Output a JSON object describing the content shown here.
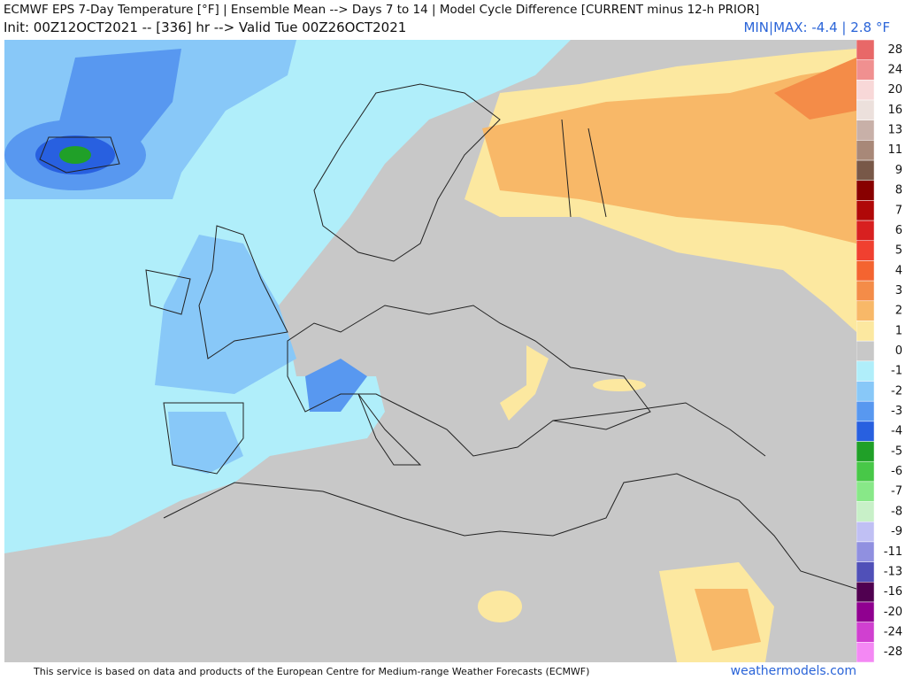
{
  "header": {
    "title": "ECMWF EPS 7-Day Temperature [°F] | Ensemble Mean --> Days 7 to 14 | Model Cycle Difference [CURRENT minus 12-h PRIOR]",
    "subtitle": "Init: 00Z12OCT2021 -- [336] hr --> Valid Tue 00Z26OCT2021",
    "minmax": "MIN|MAX: -4.4 | 2.8 °F"
  },
  "colorbar": [
    {
      "label": 28,
      "color": "#e86868"
    },
    {
      "label": 24,
      "color": "#f09090"
    },
    {
      "label": 20,
      "color": "#f8d8d8"
    },
    {
      "label": 16,
      "color": "#ece0dc"
    },
    {
      "label": 13,
      "color": "#c8b0a8"
    },
    {
      "label": 11,
      "color": "#a88878"
    },
    {
      "label": 9,
      "color": "#785848"
    },
    {
      "label": 8,
      "color": "#880000"
    },
    {
      "label": 7,
      "color": "#b00808"
    },
    {
      "label": 6,
      "color": "#d82020"
    },
    {
      "label": 5,
      "color": "#f04030"
    },
    {
      "label": 4,
      "color": "#f46430"
    },
    {
      "label": 3,
      "color": "#f48c48"
    },
    {
      "label": 2,
      "color": "#f8b868"
    },
    {
      "label": 1,
      "color": "#fce8a0"
    },
    {
      "label": 0,
      "color": "#c8c8c8"
    },
    {
      "label": -1,
      "color": "#b0eefa"
    },
    {
      "label": -2,
      "color": "#88c8f8"
    },
    {
      "label": -3,
      "color": "#5898f0"
    },
    {
      "label": -4,
      "color": "#2860e0"
    },
    {
      "label": -5,
      "color": "#20a028"
    },
    {
      "label": -6,
      "color": "#48c848"
    },
    {
      "label": -7,
      "color": "#88e888"
    },
    {
      "label": -8,
      "color": "#c8f0c8"
    },
    {
      "label": -9,
      "color": "#c0c0f4"
    },
    {
      "label": -11,
      "color": "#9090e0"
    },
    {
      "label": -13,
      "color": "#5050b8"
    },
    {
      "label": -16,
      "color": "#500050"
    },
    {
      "label": -20,
      "color": "#900090"
    },
    {
      "label": -24,
      "color": "#d040d0"
    },
    {
      "label": -28,
      "color": "#f488f4"
    }
  ],
  "footer": {
    "credit": "This service is based on data and products of the European Centre for Medium-range Weather Forecasts (ECMWF)",
    "site": "weathermodels.com"
  }
}
